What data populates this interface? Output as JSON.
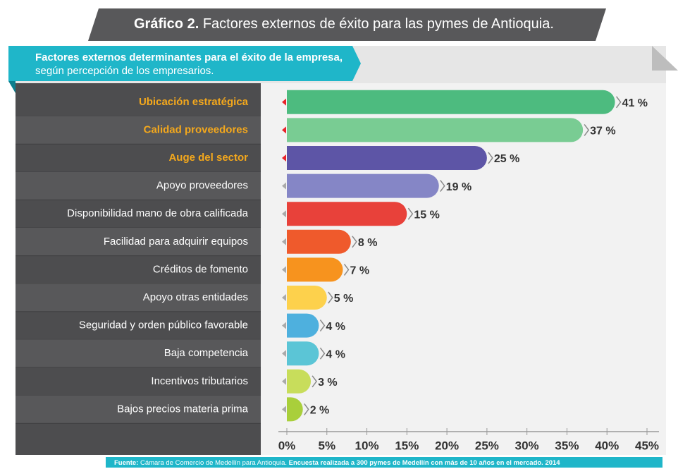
{
  "chart_data": {
    "type": "bar",
    "orientation": "horizontal",
    "title_bold": "Gráfico 2.",
    "title": "Factores externos de éxito para las pymes de Antioquia.",
    "subtitle_bold": "Factores externos determinantes para el éxito de la empresa,",
    "subtitle": "según percepción de los empresarios.",
    "categories": [
      "Ubicación estratégica",
      "Calidad proveedores",
      "Auge del sector",
      "Apoyo proveedores",
      "Disponibilidad mano de obra calificada",
      "Facilidad para adquirir equipos",
      "Créditos de fomento",
      "Apoyo otras entidades",
      "Seguridad y orden público favorable",
      "Baja competencia",
      "Incentivos tributarios",
      "Bajos precios materia prima"
    ],
    "values": [
      41,
      37,
      25,
      19,
      15,
      8,
      7,
      5,
      4,
      4,
      3,
      2
    ],
    "value_labels": [
      "41 %",
      "37 %",
      "25 %",
      "19 %",
      "15 %",
      "8 %",
      "7 %",
      "5 %",
      "4 %",
      "4 %",
      "3 %",
      "2 %"
    ],
    "colors": [
      "#4dbb7f",
      "#79cc93",
      "#5d55a6",
      "#8586c6",
      "#e8413a",
      "#ef5a2c",
      "#f7931e",
      "#fdd14c",
      "#4eb0de",
      "#5bc5d6",
      "#c8dd5b",
      "#a9cf3b"
    ],
    "label_colors": [
      "#f4a81c",
      "#f4a81c",
      "#f4a81c",
      "#ffffff",
      "#ffffff",
      "#ffffff",
      "#ffffff",
      "#ffffff",
      "#ffffff",
      "#ffffff",
      "#ffffff",
      "#ffffff"
    ],
    "xlim": [
      0,
      45
    ],
    "xticks": [
      {
        "value": 0,
        "label": "0%"
      },
      {
        "value": 5,
        "label": "5%"
      },
      {
        "value": 10,
        "label": "10%"
      },
      {
        "value": 15,
        "label": "15%"
      },
      {
        "value": 20,
        "label": "20%"
      },
      {
        "value": 25,
        "label": "25%"
      },
      {
        "value": 30,
        "label": "30%"
      },
      {
        "value": 35,
        "label": "35%"
      },
      {
        "value": 40,
        "label": "40%"
      },
      {
        "value": 45,
        "label": "45%"
      }
    ],
    "grid": false,
    "source_bold": "Fuente:",
    "source": "Cámara de Comercio de Medellín para Antioquia.",
    "source_note": "Encuesta realizada a 300 pymes de Medellín con más de 10 años en el mercado. 2014"
  }
}
